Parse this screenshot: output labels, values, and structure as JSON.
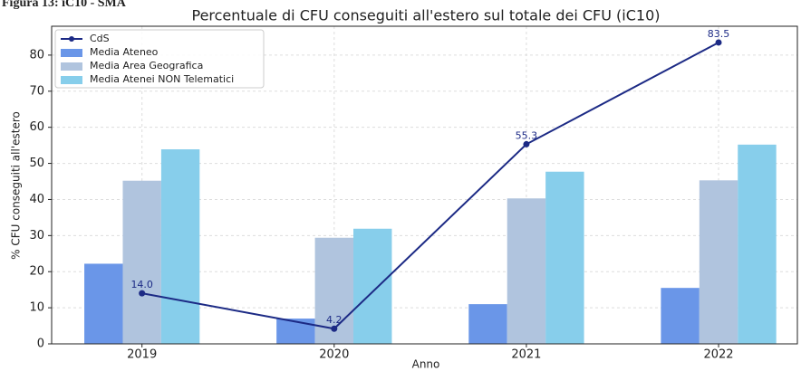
{
  "heading": "Figura 13: iC10 - SMA",
  "chart_data": {
    "type": "bar",
    "title": "Percentuale di CFU conseguiti all'estero sul totale dei CFU (iC10)",
    "x_label": "Anno",
    "y_label": "% CFU conseguiti all'estero",
    "categories": [
      "2019",
      "2020",
      "2021",
      "2022"
    ],
    "series": [
      {
        "name": "CdS",
        "type": "line",
        "color": "#1c2a85",
        "values": [
          14.0,
          4.2,
          55.3,
          83.5
        ],
        "value_labels": [
          "14.0",
          "4.2",
          "55.3",
          "83.5"
        ]
      },
      {
        "name": "Media Ateneo",
        "type": "bar",
        "color": "#6a96e8",
        "values": [
          22.2,
          7.0,
          11.0,
          15.5
        ]
      },
      {
        "name": "Media Area Geografica",
        "type": "bar",
        "color": "#b0c4de",
        "values": [
          45.2,
          29.4,
          40.3,
          45.3
        ]
      },
      {
        "name": "Media Atenei NON Telematici",
        "type": "bar",
        "color": "#87ceeb",
        "values": [
          53.9,
          31.9,
          47.7,
          55.2
        ]
      }
    ],
    "ylim": [
      0,
      88
    ],
    "yticks": [
      0,
      10,
      20,
      30,
      40,
      50,
      60,
      70,
      80
    ],
    "grid": true,
    "legend": "upper left"
  }
}
